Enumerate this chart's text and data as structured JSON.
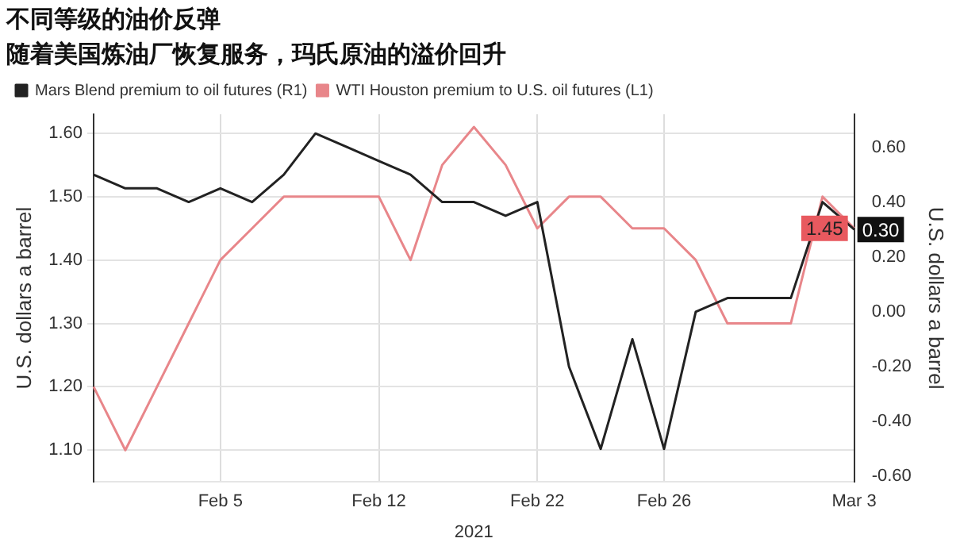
{
  "chart_data": {
    "type": "line",
    "title": "不同等级的油价反弹",
    "subtitle": "随着美国炼油厂恢复服务，玛氏原油的溢价回升",
    "xlabel": "2021",
    "ylabel": "U.S. dollars a barrel",
    "y2label": "U.S. dollars a barrel",
    "categories": [
      null,
      null,
      null,
      null,
      "Feb 5",
      null,
      null,
      null,
      null,
      "Feb 12",
      null,
      null,
      null,
      null,
      "Feb 22",
      null,
      null,
      null,
      "Feb 26",
      null,
      null,
      null,
      null,
      null,
      "Mar 3"
    ],
    "series": [
      {
        "name": "Mars Blend premium to oil futures (R1)",
        "color": "#222222",
        "axis": "y2",
        "values": [
          0.5,
          0.45,
          0.45,
          0.4,
          0.45,
          0.4,
          0.5,
          0.65,
          0.6,
          0.55,
          0.5,
          0.4,
          0.4,
          0.35,
          0.4,
          -0.2,
          -0.5,
          -0.1,
          -0.5,
          0.0,
          0.05,
          0.05,
          0.05,
          0.4,
          0.3
        ],
        "value_labels": [
          null,
          null,
          null,
          null,
          null,
          null,
          null,
          null,
          null,
          null,
          null,
          null,
          null,
          null,
          null,
          null,
          null,
          null,
          null,
          null,
          null,
          null,
          null,
          null,
          "0.30"
        ]
      },
      {
        "name": "WTI Houston premium to U.S. oil futures (L1)",
        "color": "#e8868a",
        "values": [
          1.2,
          1.1,
          1.2,
          1.3,
          1.4,
          1.45,
          1.5,
          1.5,
          1.5,
          1.5,
          1.4,
          1.55,
          1.61,
          1.55,
          1.45,
          1.5,
          1.5,
          1.45,
          1.45,
          1.4,
          1.3,
          1.3,
          1.3,
          1.5,
          1.45
        ],
        "value_labels": [
          null,
          null,
          null,
          null,
          null,
          null,
          null,
          null,
          null,
          null,
          null,
          null,
          null,
          null,
          null,
          null,
          null,
          null,
          null,
          null,
          null,
          null,
          null,
          null,
          "1.45"
        ]
      }
    ],
    "ylim": [
      1.05,
      1.63
    ],
    "yticks": [
      {
        "value": 1.1,
        "label": "1.10"
      },
      {
        "value": 1.2,
        "label": "1.20"
      },
      {
        "value": 1.3,
        "label": "1.30"
      },
      {
        "value": 1.4,
        "label": "1.40"
      },
      {
        "value": 1.5,
        "label": "1.50"
      },
      {
        "value": 1.6,
        "label": "1.60"
      }
    ],
    "y2lim": [
      -0.62,
      0.72
    ],
    "y2ticks": [
      {
        "value": -0.6,
        "label": "-0.60"
      },
      {
        "value": -0.4,
        "label": "-0.40"
      },
      {
        "value": -0.2,
        "label": "-0.20"
      },
      {
        "value": 0,
        "label": "0.00"
      },
      {
        "value": 0.2,
        "label": "0.20"
      },
      {
        "value": 0.4,
        "label": "0.40"
      },
      {
        "value": 0.6,
        "label": "0.60"
      }
    ],
    "grid": true,
    "legend": "top left",
    "marker": "none",
    "line_style": "solid"
  }
}
